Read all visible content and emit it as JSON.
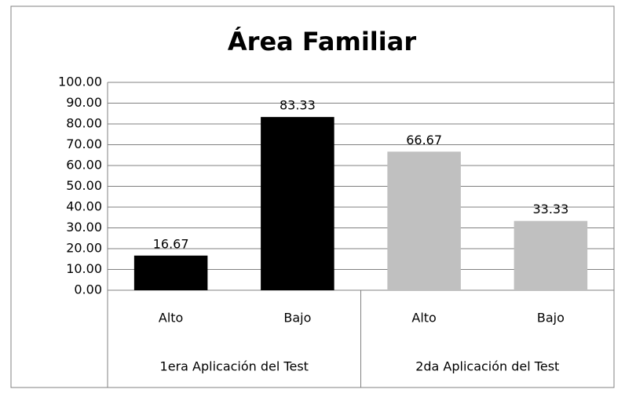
{
  "chart_data": {
    "type": "bar",
    "title": "Área Familiar",
    "categories": [
      "Alto",
      "Bajo",
      "Alto",
      "Bajo"
    ],
    "groups": [
      "1era Aplicación del Test",
      "2da Aplicación del Test"
    ],
    "values": [
      16.67,
      83.33,
      66.67,
      33.33
    ],
    "colors": [
      "#000000",
      "#000000",
      "#c0c0c0",
      "#c0c0c0"
    ],
    "ylim": [
      0,
      100
    ],
    "yticks": [
      {
        "value": 0,
        "label": "0.00"
      },
      {
        "value": 10,
        "label": "10.00"
      },
      {
        "value": 20,
        "label": "20.00"
      },
      {
        "value": 30,
        "label": "30.00"
      },
      {
        "value": 40,
        "label": "40.00"
      },
      {
        "value": 50,
        "label": "50.00"
      },
      {
        "value": 60,
        "label": "60.00"
      },
      {
        "value": 70,
        "label": "70.00"
      },
      {
        "value": 80,
        "label": "80.00"
      },
      {
        "value": 90,
        "label": "90.00"
      },
      {
        "value": 100,
        "label": "100.00"
      }
    ],
    "grid": true
  }
}
